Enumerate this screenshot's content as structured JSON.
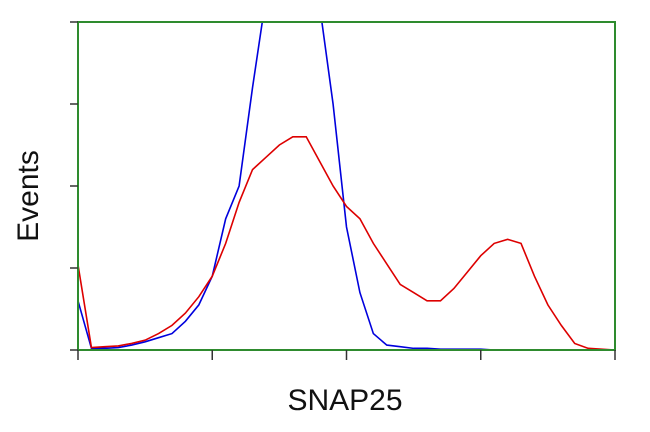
{
  "chart_data": {
    "type": "line",
    "xlabel": "SNAP25",
    "ylabel": "Events",
    "x": [
      0,
      0.1,
      0.2,
      0.3,
      0.4,
      0.5,
      0.6,
      0.7,
      0.8,
      0.9,
      1.0,
      1.1,
      1.2,
      1.3,
      1.4,
      1.5,
      1.6,
      1.7,
      1.8,
      1.9,
      2.0,
      2.1,
      2.2,
      2.3,
      2.4,
      2.5,
      2.6,
      2.7,
      2.8,
      2.9,
      3.0,
      3.1,
      3.2,
      3.3,
      3.4,
      3.5,
      3.6,
      3.7,
      3.8,
      3.9,
      4.0
    ],
    "series": [
      {
        "color": "#0000dd",
        "values": [
          0.6,
          0.02,
          0.02,
          0.03,
          0.06,
          0.1,
          0.15,
          0.2,
          0.35,
          0.55,
          0.9,
          1.6,
          2.0,
          3.2,
          4.3,
          4.5,
          4.6,
          4.4,
          4.2,
          3.0,
          1.5,
          0.7,
          0.2,
          0.06,
          0.04,
          0.02,
          0.02,
          0.01,
          0.01,
          0.01,
          0.01,
          0,
          0,
          0,
          0,
          0,
          0,
          0,
          0,
          0,
          0
        ]
      },
      {
        "color": "#dd0000",
        "values": [
          1.04,
          0.03,
          0.04,
          0.05,
          0.08,
          0.12,
          0.2,
          0.3,
          0.45,
          0.65,
          0.9,
          1.3,
          1.8,
          2.2,
          2.35,
          2.5,
          2.6,
          2.6,
          2.3,
          2.0,
          1.75,
          1.6,
          1.3,
          1.05,
          0.8,
          0.7,
          0.6,
          0.6,
          0.75,
          0.95,
          1.15,
          1.3,
          1.35,
          1.3,
          0.9,
          0.55,
          0.3,
          0.08,
          0.02,
          0.01,
          0
        ]
      }
    ],
    "frame_color": "#2e8b2e",
    "xlim": [
      0,
      4
    ],
    "xticks": [
      0,
      1,
      2,
      3,
      4
    ],
    "ylim": [
      0,
      4
    ],
    "yticks": [
      0,
      1,
      2,
      3,
      4
    ]
  }
}
